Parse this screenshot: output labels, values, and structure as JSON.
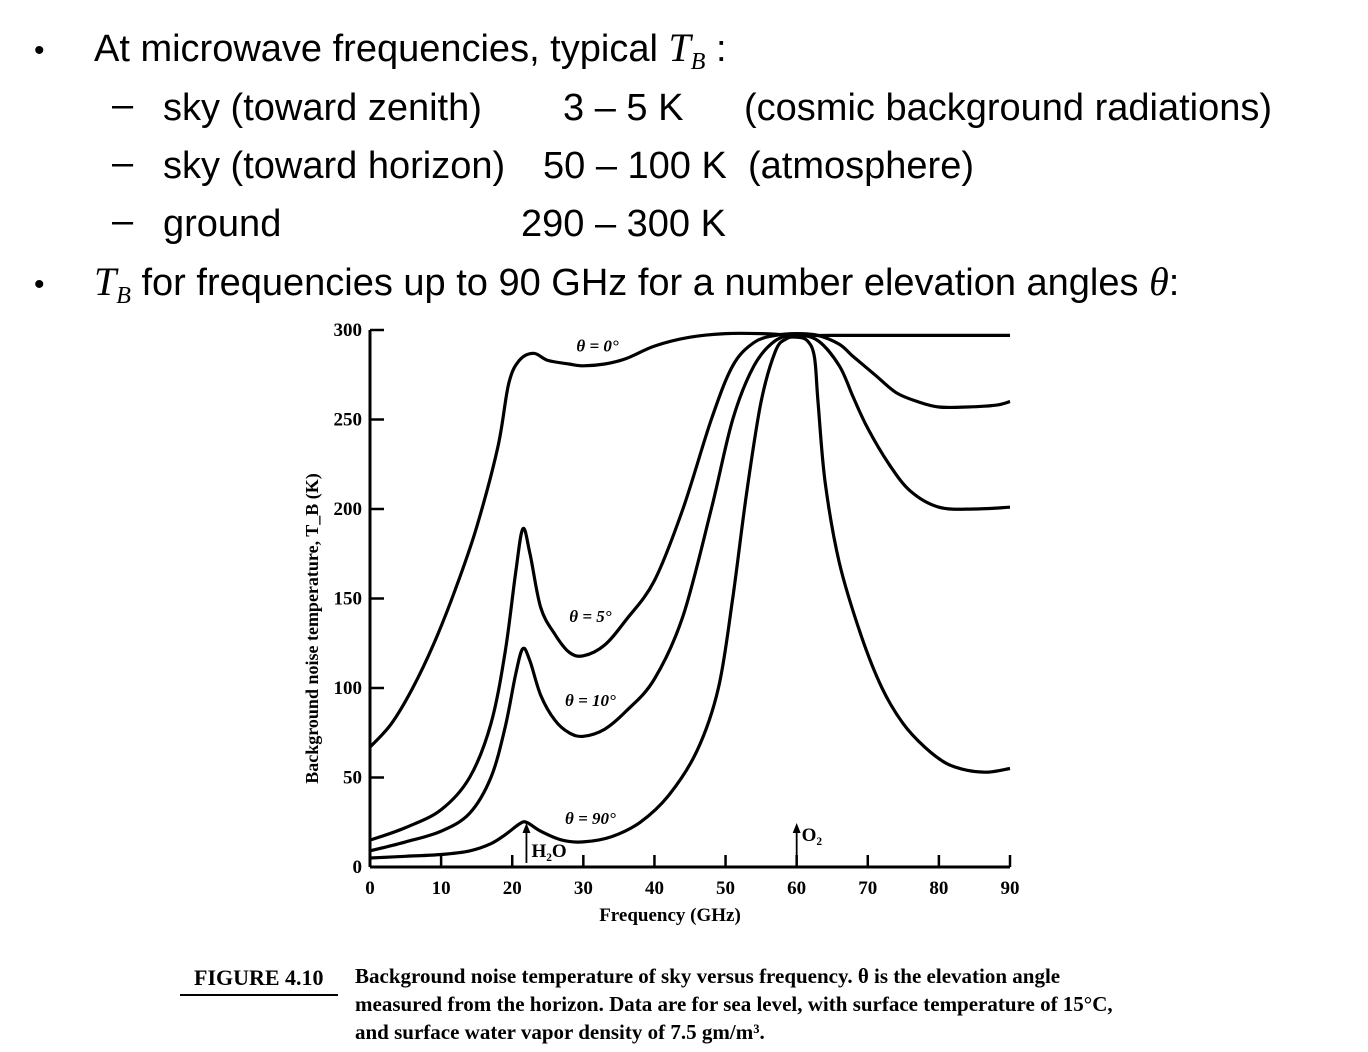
{
  "slide": {
    "bullet1": {
      "text": "At microwave frequencies, typical",
      "symbol": "T",
      "symbol_sub": "B",
      "suffix": " :"
    },
    "sub_items": [
      {
        "label": "sky (toward zenith)",
        "range": "3 – 5 K",
        "note": "(cosmic background radiations)"
      },
      {
        "label": "sky (toward horizon)",
        "range": "50 – 100 K",
        "note": "(atmosphere)"
      },
      {
        "label": "ground",
        "range": "290 – 300 K",
        "note": ""
      }
    ],
    "bullet2": {
      "symbol": "T",
      "symbol_sub": "B",
      "text": " for frequencies up to 90 GHz for a number elevation angles",
      "theta": "θ",
      "suffix": ":"
    }
  },
  "chart_data": {
    "type": "line",
    "xlabel": "Frequency (GHz)",
    "ylabel": "Background noise temperature, T_B (K)",
    "xlim": [
      0,
      90
    ],
    "ylim": [
      0,
      300
    ],
    "xticks": [
      0,
      10,
      20,
      30,
      40,
      50,
      60,
      70,
      80,
      90
    ],
    "yticks": [
      0,
      50,
      100,
      150,
      200,
      250,
      300
    ],
    "grid": false,
    "series": [
      {
        "name": "θ = 0°",
        "points": [
          [
            0,
            67
          ],
          [
            3,
            80
          ],
          [
            6,
            100
          ],
          [
            9,
            125
          ],
          [
            12,
            155
          ],
          [
            15,
            190
          ],
          [
            18,
            235
          ],
          [
            19.5,
            270
          ],
          [
            21,
            283
          ],
          [
            23,
            287
          ],
          [
            25,
            283
          ],
          [
            28,
            281
          ],
          [
            30,
            280
          ],
          [
            33,
            281
          ],
          [
            36,
            284
          ],
          [
            40,
            291
          ],
          [
            45,
            296
          ],
          [
            50,
            298
          ],
          [
            55,
            298
          ],
          [
            60,
            297
          ],
          [
            65,
            297
          ],
          [
            70,
            297
          ],
          [
            75,
            297
          ],
          [
            80,
            297
          ],
          [
            85,
            297
          ],
          [
            90,
            297
          ]
        ],
        "label_at": [
          32,
          288
        ]
      },
      {
        "name": "θ = 5°",
        "points": [
          [
            0,
            15
          ],
          [
            5,
            22
          ],
          [
            10,
            32
          ],
          [
            14,
            50
          ],
          [
            17,
            80
          ],
          [
            19,
            120
          ],
          [
            20.5,
            165
          ],
          [
            21.5,
            189
          ],
          [
            22.5,
            175
          ],
          [
            24,
            145
          ],
          [
            26,
            130
          ],
          [
            28,
            120
          ],
          [
            30,
            118
          ],
          [
            33,
            124
          ],
          [
            36,
            138
          ],
          [
            40,
            160
          ],
          [
            44,
            200
          ],
          [
            48,
            250
          ],
          [
            51,
            280
          ],
          [
            54,
            293
          ],
          [
            57,
            297
          ],
          [
            60,
            298
          ],
          [
            63,
            297
          ],
          [
            66,
            292
          ],
          [
            68,
            285
          ],
          [
            71,
            275
          ],
          [
            74,
            265
          ],
          [
            77,
            260
          ],
          [
            80,
            257
          ],
          [
            84,
            257
          ],
          [
            88,
            258
          ],
          [
            90,
            260
          ]
        ],
        "label_at": [
          31,
          137
        ]
      },
      {
        "name": "θ = 10°",
        "points": [
          [
            0,
            9
          ],
          [
            5,
            14
          ],
          [
            10,
            20
          ],
          [
            14,
            30
          ],
          [
            17,
            50
          ],
          [
            19,
            78
          ],
          [
            20.5,
            108
          ],
          [
            21.5,
            122
          ],
          [
            22.5,
            115
          ],
          [
            24,
            96
          ],
          [
            26,
            82
          ],
          [
            28,
            75
          ],
          [
            30,
            73
          ],
          [
            33,
            77
          ],
          [
            36,
            87
          ],
          [
            40,
            105
          ],
          [
            44,
            140
          ],
          [
            48,
            200
          ],
          [
            51,
            250
          ],
          [
            54,
            280
          ],
          [
            57,
            294
          ],
          [
            60,
            297
          ],
          [
            63,
            294
          ],
          [
            66,
            280
          ],
          [
            68,
            262
          ],
          [
            70,
            245
          ],
          [
            73,
            225
          ],
          [
            76,
            210
          ],
          [
            80,
            201
          ],
          [
            85,
            200
          ],
          [
            90,
            201
          ]
        ],
        "label_at": [
          31,
          90
        ]
      },
      {
        "name": "θ = 90°",
        "points": [
          [
            0,
            5
          ],
          [
            5,
            6
          ],
          [
            10,
            7
          ],
          [
            14,
            9
          ],
          [
            17,
            13
          ],
          [
            19,
            18
          ],
          [
            21,
            24
          ],
          [
            22,
            25
          ],
          [
            24,
            20
          ],
          [
            27,
            15
          ],
          [
            30,
            14
          ],
          [
            34,
            17
          ],
          [
            38,
            25
          ],
          [
            42,
            40
          ],
          [
            46,
            65
          ],
          [
            49,
            100
          ],
          [
            51,
            150
          ],
          [
            53,
            210
          ],
          [
            55,
            260
          ],
          [
            57,
            288
          ],
          [
            58.5,
            295
          ],
          [
            60,
            296
          ],
          [
            61.5,
            294
          ],
          [
            62.5,
            285
          ],
          [
            63,
            260
          ],
          [
            64,
            215
          ],
          [
            66,
            170
          ],
          [
            69,
            130
          ],
          [
            72,
            100
          ],
          [
            75,
            80
          ],
          [
            78,
            67
          ],
          [
            81,
            58
          ],
          [
            84,
            54
          ],
          [
            87,
            53
          ],
          [
            90,
            55
          ]
        ],
        "label_at": [
          31,
          24
        ]
      }
    ],
    "annotations": [
      {
        "text": "H₂O",
        "x": 22,
        "arrow": true
      },
      {
        "text": "O₂",
        "x": 60,
        "arrow": true
      }
    ],
    "caption_label": "FIGURE 4.10",
    "caption": "Background noise temperature of sky versus frequency. θ is the elevation angle measured from the horizon. Data are for sea level, with surface temperature of 15°C, and surface water vapor density of 7.5 gm/m³."
  }
}
